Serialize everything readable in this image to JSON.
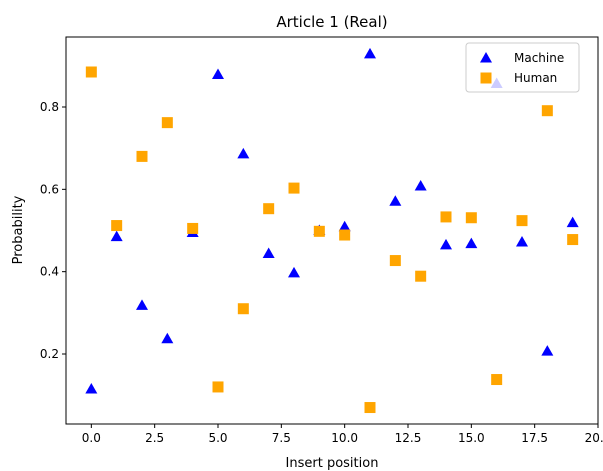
{
  "chart_data": {
    "type": "scatter",
    "title": "Article 1 (Real)",
    "xlabel": "Insert position",
    "ylabel": "Probability",
    "xlim": [
      -1,
      20
    ],
    "ylim": [
      0.03,
      0.97
    ],
    "xticks": [
      0.0,
      2.5,
      5.0,
      7.5,
      10.0,
      12.5,
      15.0,
      17.5,
      20.0
    ],
    "xtick_labels": [
      "0.0",
      "2.5",
      "5.0",
      "7.5",
      "10.0",
      "12.5",
      "15.0",
      "17.5",
      "20.0"
    ],
    "yticks": [
      0.2,
      0.4,
      0.6,
      0.8
    ],
    "ytick_labels": [
      "0.2",
      "0.4",
      "0.6",
      "0.8"
    ],
    "grid": false,
    "legend_position": "top-right",
    "series": [
      {
        "name": "Machine",
        "marker": "triangle",
        "color": "#0000ff",
        "x": [
          0,
          1,
          2,
          3,
          4,
          5,
          6,
          7,
          8,
          9,
          10,
          11,
          12,
          13,
          14,
          15,
          16,
          17,
          18,
          19
        ],
        "y": [
          0.115,
          0.485,
          0.318,
          0.237,
          0.495,
          0.879,
          0.686,
          0.444,
          0.397,
          0.5,
          0.509,
          0.929,
          0.571,
          0.608,
          0.465,
          0.468,
          0.857,
          0.472,
          0.207,
          0.519
        ]
      },
      {
        "name": "Human",
        "marker": "square",
        "color": "#ffa500",
        "x": [
          0,
          1,
          2,
          3,
          4,
          5,
          6,
          7,
          8,
          9,
          10,
          11,
          12,
          13,
          14,
          15,
          16,
          17,
          18,
          19
        ],
        "y": [
          0.885,
          0.512,
          0.68,
          0.762,
          0.505,
          0.12,
          0.31,
          0.553,
          0.603,
          0.498,
          0.489,
          0.07,
          0.427,
          0.389,
          0.533,
          0.531,
          0.138,
          0.524,
          0.791,
          0.478
        ]
      }
    ]
  }
}
